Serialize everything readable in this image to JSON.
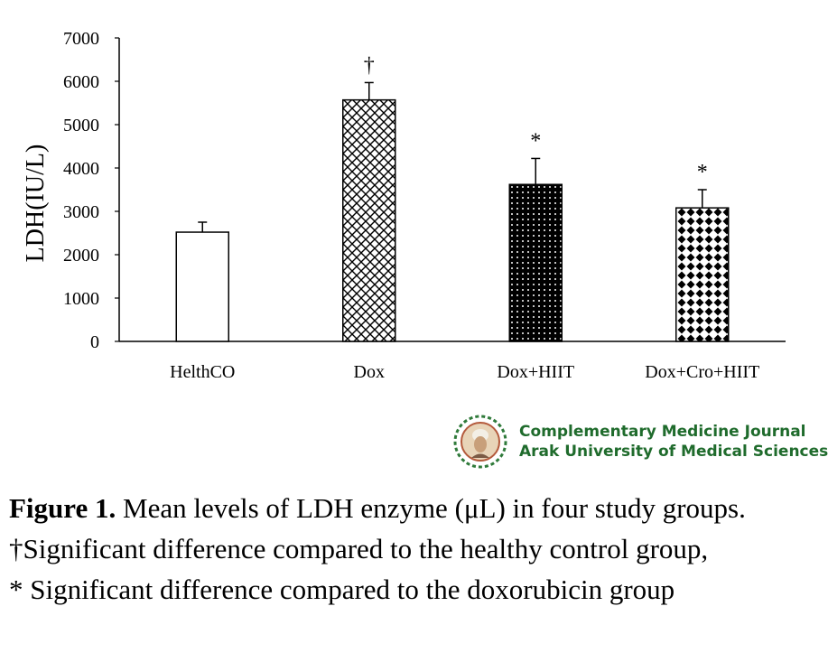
{
  "chart_data": {
    "type": "bar",
    "categories": [
      "HelthCO",
      "Dox",
      "Dox+HIIT",
      "Dox+Cro+HIIT"
    ],
    "values": [
      2520,
      5570,
      3620,
      3080
    ],
    "errors": [
      230,
      400,
      600,
      420
    ],
    "markers": [
      "",
      "†",
      "*",
      "*"
    ],
    "patterns": [
      "white",
      "crosshatch",
      "dots",
      "diamond"
    ],
    "ylabel": "LDH(IU/L)",
    "xlabel": "",
    "ylim": [
      0,
      7000
    ],
    "yticks": [
      "0",
      "1000",
      "2000",
      "3000",
      "4000",
      "5000",
      "6000",
      "7000"
    ],
    "grid": false,
    "legend": "none"
  },
  "logo": {
    "line1": "Complementary Medicine Journal",
    "line2": "Arak University of Medical Sciences",
    "icon": "portrait-emblem-icon"
  },
  "caption": {
    "label": "Figure 1.",
    "line1": " Mean levels of LDH enzyme (μL) in four study groups.",
    "line2": "†Significant difference compared to the healthy control group,",
    "line3": "* Significant difference compared to the doxorubicin group"
  },
  "colors": {
    "logo_text": "#1f6b2c",
    "bars": "#000000"
  }
}
